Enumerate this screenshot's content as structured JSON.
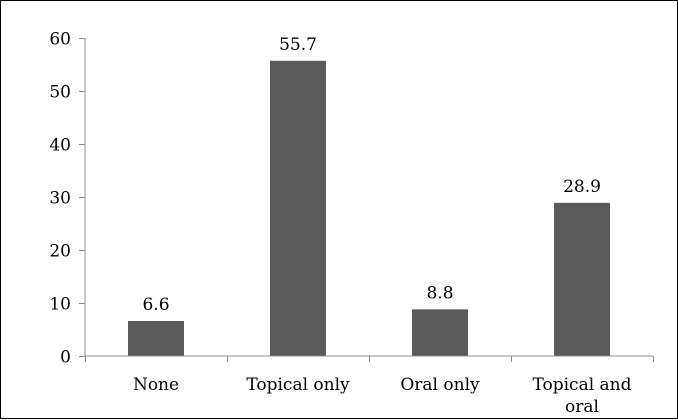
{
  "chart_data": {
    "type": "bar",
    "title": "",
    "xlabel": "",
    "ylabel": "",
    "categories": [
      "None",
      "Topical only",
      "Oral only",
      "Topical and oral"
    ],
    "category_lines": [
      [
        "None"
      ],
      [
        "Topical only"
      ],
      [
        "Oral only"
      ],
      [
        "Topical and",
        "oral"
      ]
    ],
    "values": [
      6.6,
      55.7,
      8.8,
      28.9
    ],
    "data_labels": [
      "6.6",
      "55.7",
      "8.8",
      "28.9"
    ],
    "ylim": [
      0,
      60
    ],
    "yticks": [
      0,
      10,
      20,
      30,
      40,
      50,
      60
    ],
    "grid": false,
    "legend": "none",
    "bar_color": "#5a5a5a"
  }
}
